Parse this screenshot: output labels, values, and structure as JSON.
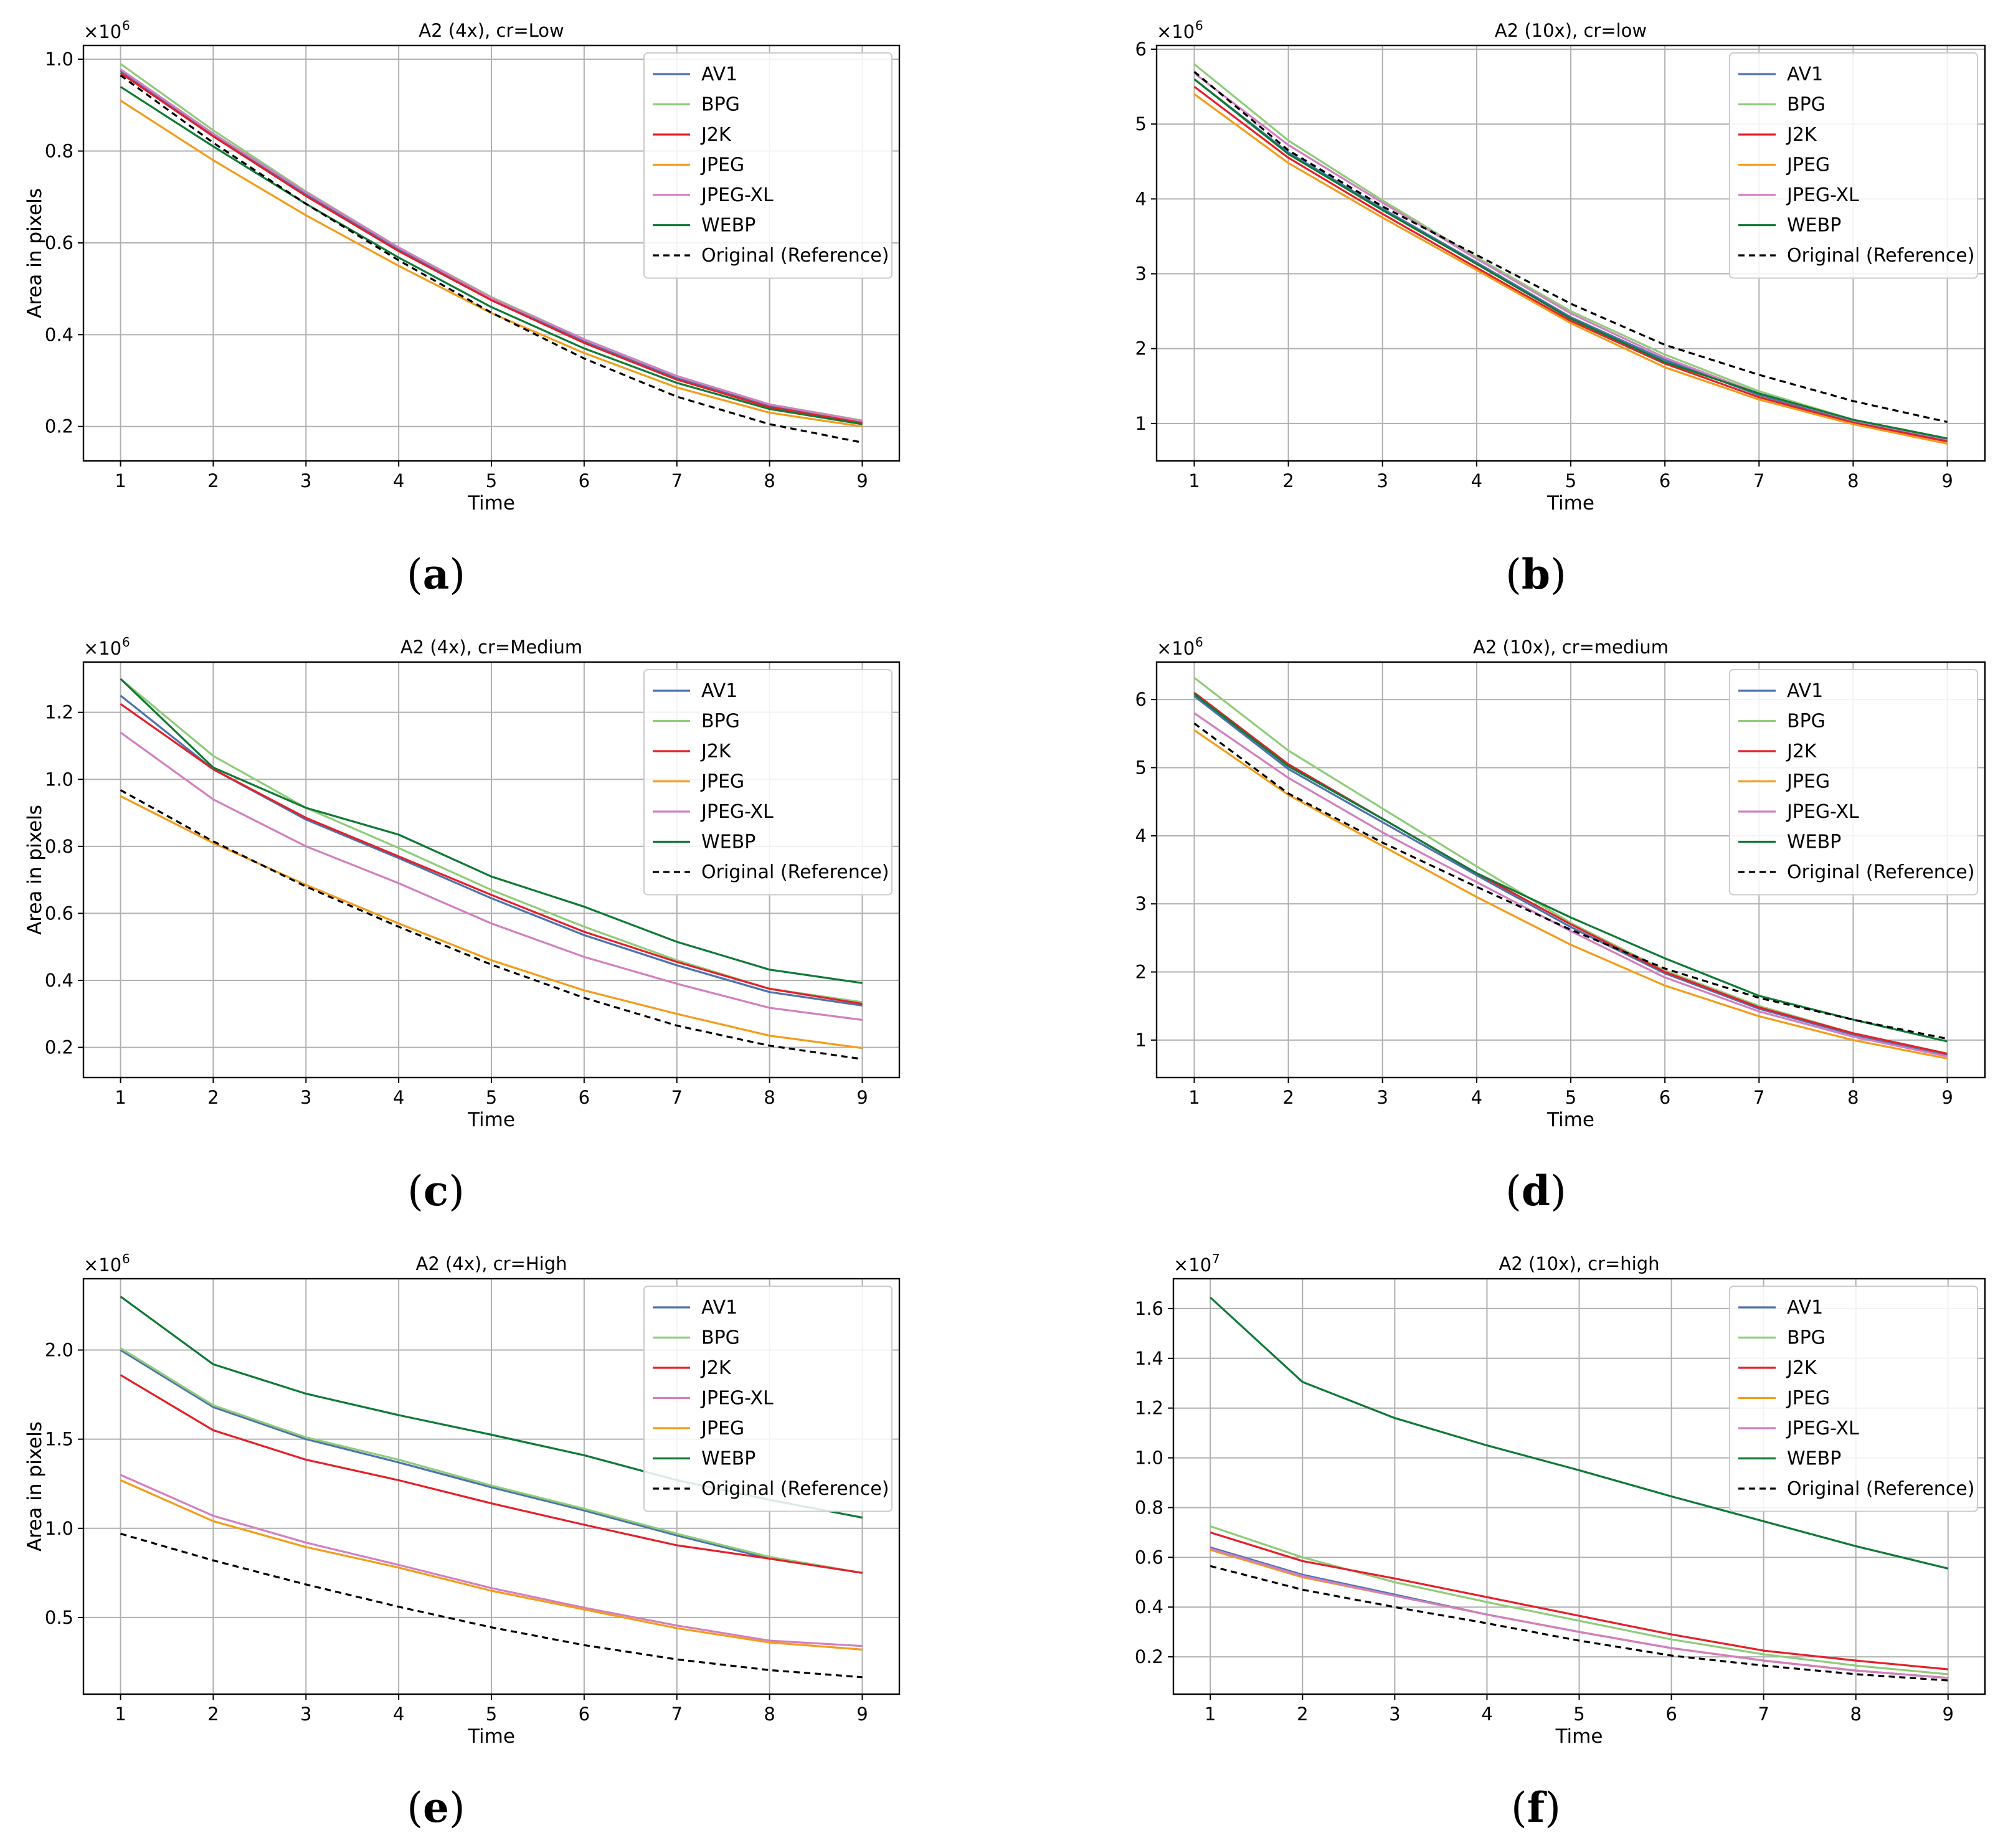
{
  "figure": {
    "captions": [
      "(a)",
      "(b)",
      "(c)",
      "(d)",
      "(e)",
      "(f)"
    ]
  },
  "chart_data": [
    {
      "type": "line",
      "panel_caption": "(a)",
      "title": "A2 (4x), cr=Low",
      "xlabel": "Time",
      "ylabel": "Area in pixels",
      "y_multiplier": "×10",
      "y_multiplier_exp": "6",
      "scale": 1000000,
      "x": [
        1,
        2,
        3,
        4,
        5,
        6,
        7,
        8,
        9
      ],
      "xlim": [
        0.6,
        9.4
      ],
      "ylim": [
        0.125,
        1.03
      ],
      "yticks": [
        0.2,
        0.4,
        0.6,
        0.8,
        1.0
      ],
      "ytick_labels": [
        "0.2",
        "0.4",
        "0.6",
        "0.8",
        "1.0"
      ],
      "grid": true,
      "legend_position": "top-right",
      "series": [
        {
          "name": "AV1",
          "color": "#4c72b0",
          "dash": "",
          "values": [
            0.975,
            0.835,
            0.705,
            0.585,
            0.478,
            0.385,
            0.305,
            0.245,
            0.21
          ]
        },
        {
          "name": "BPG",
          "color": "#8fcc7a",
          "dash": "",
          "values": [
            0.99,
            0.845,
            0.712,
            0.59,
            0.482,
            0.39,
            0.31,
            0.248,
            0.213
          ]
        },
        {
          "name": "J2K",
          "color": "#e4202a",
          "dash": "",
          "values": [
            0.97,
            0.832,
            0.702,
            0.582,
            0.475,
            0.382,
            0.302,
            0.242,
            0.208
          ]
        },
        {
          "name": "JPEG",
          "color": "#f39c1a",
          "dash": "",
          "values": [
            0.91,
            0.78,
            0.66,
            0.55,
            0.447,
            0.36,
            0.285,
            0.23,
            0.2
          ]
        },
        {
          "name": "JPEG-XL",
          "color": "#d27fc0",
          "dash": "",
          "values": [
            0.978,
            0.838,
            0.71,
            0.59,
            0.48,
            0.39,
            0.31,
            0.248,
            0.212
          ]
        },
        {
          "name": "WEBP",
          "color": "#0f7a35",
          "dash": "",
          "values": [
            0.94,
            0.81,
            0.685,
            0.568,
            0.46,
            0.37,
            0.295,
            0.238,
            0.205
          ]
        },
        {
          "name": "Original (Reference)",
          "color": "#000000",
          "dash": "10,7",
          "values": [
            0.965,
            0.818,
            0.685,
            0.562,
            0.448,
            0.348,
            0.265,
            0.205,
            0.165
          ]
        }
      ]
    },
    {
      "type": "line",
      "panel_caption": "(b)",
      "title": "A2 (10x), cr=low",
      "xlabel": "Time",
      "ylabel": "Area in pixels",
      "y_multiplier": "×10",
      "y_multiplier_exp": "6",
      "scale": 1000000,
      "x": [
        1,
        2,
        3,
        4,
        5,
        6,
        7,
        8,
        9
      ],
      "xlim": [
        0.6,
        9.4
      ],
      "ylim": [
        0.5,
        6.05
      ],
      "yticks": [
        1,
        2,
        3,
        4,
        5,
        6
      ],
      "ytick_labels": [
        "1",
        "2",
        "3",
        "4",
        "5",
        "6"
      ],
      "grid": true,
      "legend_position": "top-right",
      "series": [
        {
          "name": "AV1",
          "color": "#4c72b0",
          "dash": "",
          "values": [
            5.6,
            4.62,
            3.87,
            3.15,
            2.42,
            1.85,
            1.38,
            1.03,
            0.78
          ]
        },
        {
          "name": "BPG",
          "color": "#8fcc7a",
          "dash": "",
          "values": [
            5.8,
            4.78,
            3.98,
            3.22,
            2.5,
            1.92,
            1.43,
            1.05,
            0.8
          ]
        },
        {
          "name": "J2K",
          "color": "#e4202a",
          "dash": "",
          "values": [
            5.5,
            4.55,
            3.8,
            3.08,
            2.37,
            1.8,
            1.35,
            1.01,
            0.76
          ]
        },
        {
          "name": "JPEG",
          "color": "#f39c1a",
          "dash": "",
          "values": [
            5.4,
            4.48,
            3.75,
            3.05,
            2.34,
            1.75,
            1.32,
            0.99,
            0.73
          ]
        },
        {
          "name": "JPEG-XL",
          "color": "#d27fc0",
          "dash": "",
          "values": [
            5.68,
            4.72,
            3.95,
            3.2,
            2.47,
            1.88,
            1.4,
            1.04,
            0.79
          ]
        },
        {
          "name": "WEBP",
          "color": "#0f7a35",
          "dash": "",
          "values": [
            5.6,
            4.6,
            3.85,
            3.13,
            2.4,
            1.82,
            1.4,
            1.05,
            0.8
          ]
        },
        {
          "name": "Original (Reference)",
          "color": "#000000",
          "dash": "10,7",
          "values": [
            5.7,
            4.65,
            3.9,
            3.25,
            2.6,
            2.05,
            1.65,
            1.3,
            1.02
          ]
        }
      ]
    },
    {
      "type": "line",
      "panel_caption": "(c)",
      "title": "A2 (4x), cr=Medium",
      "xlabel": "Time",
      "ylabel": "Area in pixels",
      "y_multiplier": "×10",
      "y_multiplier_exp": "6",
      "scale": 1000000,
      "x": [
        1,
        2,
        3,
        4,
        5,
        6,
        7,
        8,
        9
      ],
      "xlim": [
        0.6,
        9.4
      ],
      "ylim": [
        0.11,
        1.35
      ],
      "yticks": [
        0.2,
        0.4,
        0.6,
        0.8,
        1.0,
        1.2
      ],
      "ytick_labels": [
        "0.2",
        "0.4",
        "0.6",
        "0.8",
        "1.0",
        "1.2"
      ],
      "grid": true,
      "legend_position": "top-right",
      "series": [
        {
          "name": "AV1",
          "color": "#4c72b0",
          "dash": "",
          "values": [
            1.25,
            1.03,
            0.88,
            0.765,
            0.645,
            0.535,
            0.445,
            0.365,
            0.325
          ]
        },
        {
          "name": "BPG",
          "color": "#8fcc7a",
          "dash": "",
          "values": [
            1.3,
            1.07,
            0.915,
            0.795,
            0.67,
            0.56,
            0.46,
            0.375,
            0.335
          ]
        },
        {
          "name": "J2K",
          "color": "#e4202a",
          "dash": "",
          "values": [
            1.225,
            1.03,
            0.885,
            0.77,
            0.655,
            0.545,
            0.455,
            0.375,
            0.33
          ]
        },
        {
          "name": "JPEG",
          "color": "#f39c1a",
          "dash": "",
          "values": [
            0.95,
            0.81,
            0.685,
            0.57,
            0.46,
            0.37,
            0.3,
            0.235,
            0.198
          ]
        },
        {
          "name": "JPEG-XL",
          "color": "#d27fc0",
          "dash": "",
          "values": [
            1.14,
            0.94,
            0.8,
            0.69,
            0.57,
            0.47,
            0.39,
            0.318,
            0.282
          ]
        },
        {
          "name": "WEBP",
          "color": "#0f7a35",
          "dash": "",
          "values": [
            1.3,
            1.035,
            0.915,
            0.835,
            0.71,
            0.62,
            0.515,
            0.432,
            0.392
          ]
        },
        {
          "name": "Original (Reference)",
          "color": "#000000",
          "dash": "10,7",
          "values": [
            0.968,
            0.815,
            0.68,
            0.56,
            0.447,
            0.348,
            0.265,
            0.205,
            0.165
          ]
        }
      ]
    },
    {
      "type": "line",
      "panel_caption": "(d)",
      "title": "A2 (10x), cr=medium",
      "xlabel": "Time",
      "ylabel": "Area in pixels",
      "y_multiplier": "×10",
      "y_multiplier_exp": "6",
      "scale": 1000000,
      "x": [
        1,
        2,
        3,
        4,
        5,
        6,
        7,
        8,
        9
      ],
      "xlim": [
        0.6,
        9.4
      ],
      "ylim": [
        0.45,
        6.55
      ],
      "yticks": [
        1,
        2,
        3,
        4,
        5,
        6
      ],
      "ytick_labels": [
        "1",
        "2",
        "3",
        "4",
        "5",
        "6"
      ],
      "grid": true,
      "legend_position": "top-right",
      "series": [
        {
          "name": "AV1",
          "color": "#4c72b0",
          "dash": "",
          "values": [
            6.05,
            4.98,
            4.2,
            3.42,
            2.66,
            1.98,
            1.46,
            1.08,
            0.78
          ]
        },
        {
          "name": "BPG",
          "color": "#8fcc7a",
          "dash": "",
          "values": [
            6.32,
            5.25,
            4.4,
            3.55,
            2.72,
            2.02,
            1.5,
            1.1,
            0.8
          ]
        },
        {
          "name": "J2K",
          "color": "#e4202a",
          "dash": "",
          "values": [
            6.1,
            5.05,
            4.25,
            3.45,
            2.7,
            2.0,
            1.48,
            1.1,
            0.8
          ]
        },
        {
          "name": "JPEG",
          "color": "#f39c1a",
          "dash": "",
          "values": [
            5.55,
            4.6,
            3.85,
            3.1,
            2.4,
            1.8,
            1.35,
            1.0,
            0.73
          ]
        },
        {
          "name": "JPEG-XL",
          "color": "#d27fc0",
          "dash": "",
          "values": [
            5.8,
            4.85,
            4.05,
            3.32,
            2.6,
            1.92,
            1.42,
            1.05,
            0.76
          ]
        },
        {
          "name": "WEBP",
          "color": "#0f7a35",
          "dash": "",
          "values": [
            6.08,
            5.02,
            4.25,
            3.45,
            2.8,
            2.2,
            1.65,
            1.3,
            0.98
          ]
        },
        {
          "name": "Original (Reference)",
          "color": "#000000",
          "dash": "10,7",
          "values": [
            5.65,
            4.62,
            3.9,
            3.25,
            2.62,
            2.05,
            1.62,
            1.3,
            1.02
          ]
        }
      ]
    },
    {
      "type": "line",
      "panel_caption": "(e)",
      "title": "A2 (4x), cr=High",
      "xlabel": "Time",
      "ylabel": "Area in pixels",
      "y_multiplier": "×10",
      "y_multiplier_exp": "6",
      "scale": 1000000,
      "x": [
        1,
        2,
        3,
        4,
        5,
        6,
        7,
        8,
        9
      ],
      "xlim": [
        0.6,
        9.4
      ],
      "ylim": [
        0.07,
        2.4
      ],
      "yticks": [
        0.5,
        1.0,
        1.5,
        2.0
      ],
      "ytick_labels": [
        "0.5",
        "1.0",
        "1.5",
        "2.0"
      ],
      "grid": true,
      "legend_position": "top-right",
      "series": [
        {
          "name": "AV1",
          "color": "#4c72b0",
          "dash": "",
          "values": [
            2.0,
            1.68,
            1.5,
            1.37,
            1.23,
            1.1,
            0.96,
            0.83,
            0.75
          ]
        },
        {
          "name": "BPG",
          "color": "#8fcc7a",
          "dash": "",
          "values": [
            2.01,
            1.69,
            1.51,
            1.385,
            1.24,
            1.11,
            0.97,
            0.84,
            0.75
          ]
        },
        {
          "name": "J2K",
          "color": "#e4202a",
          "dash": "",
          "values": [
            1.86,
            1.55,
            1.385,
            1.27,
            1.14,
            1.02,
            0.905,
            0.83,
            0.75
          ]
        },
        {
          "name": "JPEG-XL",
          "color": "#d27fc0",
          "dash": "",
          "values": [
            1.3,
            1.07,
            0.92,
            0.795,
            0.665,
            0.555,
            0.455,
            0.37,
            0.34
          ]
        },
        {
          "name": "JPEG",
          "color": "#f39c1a",
          "dash": "",
          "values": [
            1.27,
            1.04,
            0.895,
            0.78,
            0.65,
            0.545,
            0.44,
            0.36,
            0.32
          ]
        },
        {
          "name": "WEBP",
          "color": "#0f7a35",
          "dash": "",
          "values": [
            2.3,
            1.92,
            1.755,
            1.635,
            1.525,
            1.41,
            1.27,
            1.16,
            1.06
          ]
        },
        {
          "name": "Original (Reference)",
          "color": "#000000",
          "dash": "10,7",
          "values": [
            0.97,
            0.82,
            0.685,
            0.56,
            0.445,
            0.345,
            0.265,
            0.205,
            0.165
          ]
        }
      ]
    },
    {
      "type": "line",
      "panel_caption": "(f)",
      "title": "A2 (10x), cr=high",
      "xlabel": "Time",
      "ylabel": "Area in pixels",
      "y_multiplier": "×10",
      "y_multiplier_exp": "7",
      "scale": 10000000,
      "x": [
        1,
        2,
        3,
        4,
        5,
        6,
        7,
        8,
        9
      ],
      "xlim": [
        0.6,
        9.4
      ],
      "ylim": [
        0.05,
        1.72
      ],
      "yticks": [
        0.2,
        0.4,
        0.6,
        0.8,
        1.0,
        1.2,
        1.4,
        1.6
      ],
      "ytick_labels": [
        "0.2",
        "0.4",
        "0.6",
        "0.8",
        "1.0",
        "1.2",
        "1.4",
        "1.6"
      ],
      "grid": true,
      "legend_position": "top-right",
      "series": [
        {
          "name": "AV1",
          "color": "#4c72b0",
          "dash": "",
          "values": [
            0.64,
            0.53,
            0.45,
            0.37,
            0.3,
            0.235,
            0.185,
            0.145,
            0.115
          ]
        },
        {
          "name": "BPG",
          "color": "#8fcc7a",
          "dash": "",
          "values": [
            0.725,
            0.6,
            0.5,
            0.42,
            0.345,
            0.27,
            0.21,
            0.165,
            0.13
          ]
        },
        {
          "name": "J2K",
          "color": "#e4202a",
          "dash": "",
          "values": [
            0.7,
            0.585,
            0.515,
            0.44,
            0.365,
            0.29,
            0.225,
            0.185,
            0.15
          ]
        },
        {
          "name": "JPEG",
          "color": "#f39c1a",
          "dash": "",
          "values": [
            0.63,
            0.52,
            0.445,
            0.37,
            0.3,
            0.235,
            0.185,
            0.145,
            0.115
          ]
        },
        {
          "name": "JPEG-XL",
          "color": "#d27fc0",
          "dash": "",
          "values": [
            0.635,
            0.525,
            0.445,
            0.37,
            0.3,
            0.235,
            0.185,
            0.145,
            0.115
          ]
        },
        {
          "name": "WEBP",
          "color": "#0f7a35",
          "dash": "",
          "values": [
            1.645,
            1.305,
            1.16,
            1.05,
            0.95,
            0.845,
            0.745,
            0.645,
            0.555
          ]
        },
        {
          "name": "Original (Reference)",
          "color": "#000000",
          "dash": "10,7",
          "values": [
            0.565,
            0.47,
            0.4,
            0.335,
            0.265,
            0.205,
            0.165,
            0.13,
            0.105
          ]
        }
      ]
    }
  ]
}
